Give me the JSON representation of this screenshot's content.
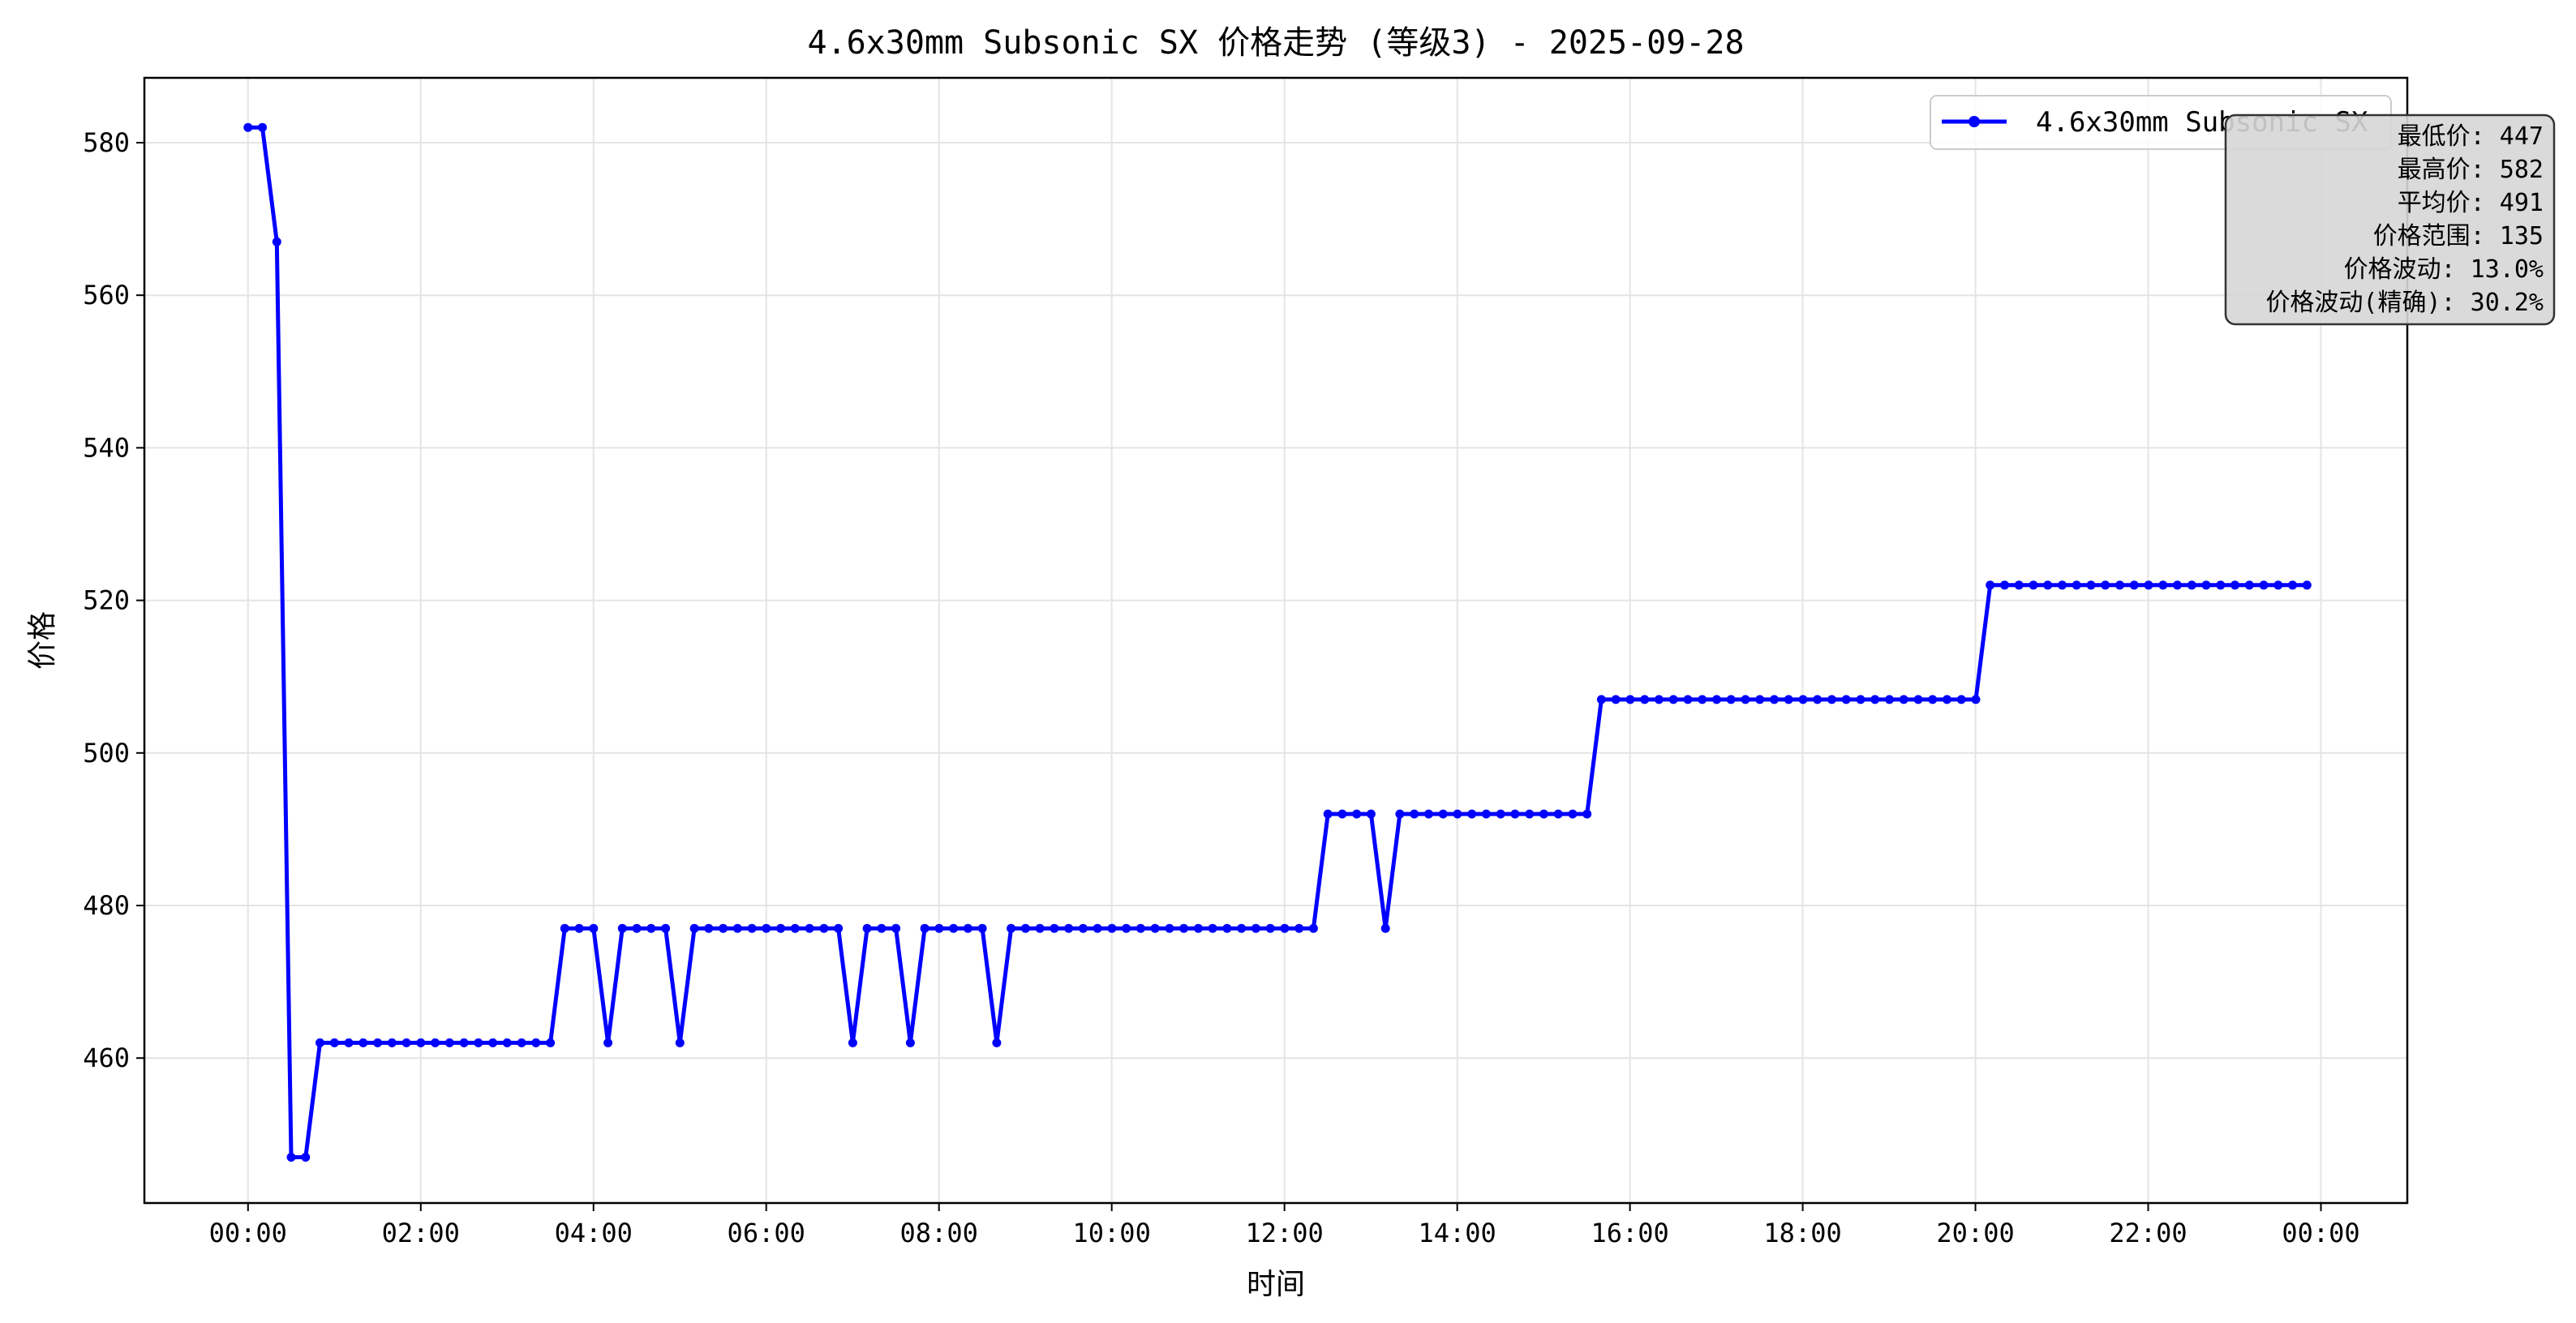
{
  "chart_data": {
    "type": "line",
    "title": "4.6x30mm Subsonic SX 价格走势 (等级3) - 2025-09-28",
    "xlabel": "时间",
    "ylabel": "价格",
    "x_tick_labels": [
      "00:00",
      "02:00",
      "04:00",
      "06:00",
      "08:00",
      "10:00",
      "12:00",
      "14:00",
      "16:00",
      "18:00",
      "20:00",
      "22:00",
      "00:00"
    ],
    "x_tick_hours": [
      0,
      2,
      4,
      6,
      8,
      10,
      12,
      14,
      16,
      18,
      20,
      22,
      24
    ],
    "xlim_hours": [
      -1.2,
      25.0
    ],
    "y_ticks": [
      460,
      480,
      500,
      520,
      540,
      560,
      580
    ],
    "ylim": [
      441,
      588.5
    ],
    "grid": true,
    "legend_position": "upper-right",
    "series": [
      {
        "name": "4.6x30mm Subsonic SX",
        "color": "#0000ff",
        "x_hours_step": 0.1667,
        "y": [
          582,
          582,
          567,
          447,
          447,
          462,
          462,
          462,
          462,
          462,
          462,
          462,
          462,
          462,
          462,
          462,
          462,
          462,
          462,
          462,
          462,
          462,
          477,
          477,
          477,
          462,
          477,
          477,
          477,
          477,
          462,
          477,
          477,
          477,
          477,
          477,
          477,
          477,
          477,
          477,
          477,
          477,
          462,
          477,
          477,
          477,
          462,
          477,
          477,
          477,
          477,
          477,
          462,
          477,
          477,
          477,
          477,
          477,
          477,
          477,
          477,
          477,
          477,
          477,
          477,
          477,
          477,
          477,
          477,
          477,
          477,
          477,
          477,
          477,
          477,
          492,
          492,
          492,
          492,
          477,
          492,
          492,
          492,
          492,
          492,
          492,
          492,
          492,
          492,
          492,
          492,
          492,
          492,
          492,
          507,
          507,
          507,
          507,
          507,
          507,
          507,
          507,
          507,
          507,
          507,
          507,
          507,
          507,
          507,
          507,
          507,
          507,
          507,
          507,
          507,
          507,
          507,
          507,
          507,
          507,
          507,
          522,
          522,
          522,
          522,
          522,
          522,
          522,
          522,
          522,
          522,
          522,
          522,
          522,
          522,
          522,
          522,
          522,
          522,
          522,
          522,
          522,
          522,
          522
        ]
      }
    ],
    "stats_box": {
      "lines": [
        "最低价: 447",
        "最高价: 582",
        "平均价: 491",
        "价格范围: 135",
        "价格波动: 13.0%",
        "价格波动(精确): 30.2%"
      ]
    }
  }
}
